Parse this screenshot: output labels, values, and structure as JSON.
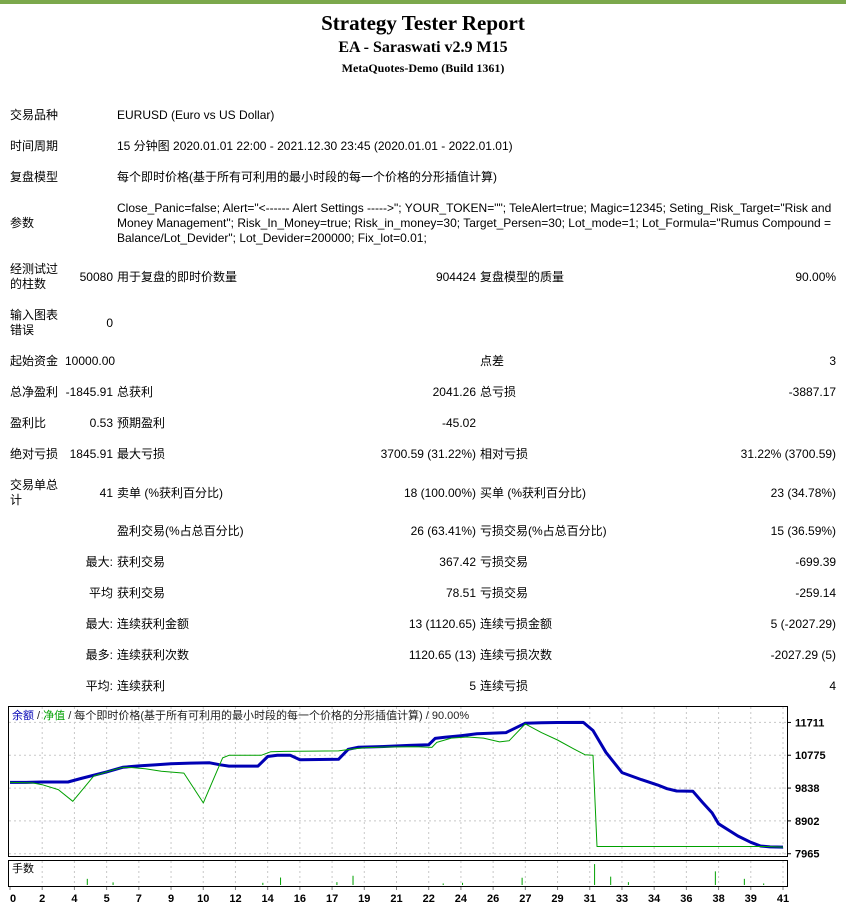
{
  "header": {
    "title": "Strategy Tester Report",
    "subtitle": "EA - Saraswati v2.9 M15",
    "server": "MetaQuotes-Demo (Build 1361)",
    "accent_color": "#7BA84C"
  },
  "table": {
    "rows": [
      {
        "c": [
          "交易品种",
          "",
          "EURUSD (Euro vs US Dollar)",
          "",
          "",
          ""
        ],
        "wide": true
      },
      {
        "c": [
          "时间周期",
          "",
          "15 分钟图 2020.01.01 22:00 - 2021.12.30 23:45 (2020.01.01 - 2022.01.01)",
          "",
          "",
          ""
        ],
        "wide": true
      },
      {
        "c": [
          "复盘模型",
          "",
          "每个即时价格(基于所有可利用的最小时段的每一个价格的分形插值计算)",
          "",
          "",
          ""
        ],
        "wide": true
      },
      {
        "c": [
          "参数",
          "",
          "Close_Panic=false; Alert=\"<------ Alert Settings ----->\"; YOUR_TOKEN=\"\"; TeleAlert=true; Magic=12345; Seting_Risk_Target=\"Risk and Money Management\"; Risk_In_Money=true; Risk_in_money=30; Target_Persen=30; Lot_mode=1; Lot_Formula=\"Rumus Compound = Balance/Lot_Devider\"; Lot_Devider=200000; Fix_lot=0.01;",
          "",
          "",
          ""
        ],
        "wide": true
      },
      {
        "c": [
          "经测试过的柱数",
          "50080",
          "用于复盘的即时价数量",
          "904424",
          "复盘模型的质量",
          "90.00%"
        ]
      },
      {
        "c": [
          "输入图表错误",
          "0",
          "",
          "",
          "",
          ""
        ]
      },
      {
        "c": [
          "起始资金",
          "10000.00",
          "",
          "",
          "点差",
          "3"
        ]
      },
      {
        "c": [
          "总净盈利",
          "-1845.91",
          "总获利",
          "2041.26",
          "总亏损",
          "-3887.17"
        ]
      },
      {
        "c": [
          "盈利比",
          "0.53",
          "预期盈利",
          "-45.02",
          "",
          ""
        ]
      },
      {
        "c": [
          "绝对亏损",
          "1845.91",
          "最大亏损",
          "3700.59 (31.22%)",
          "相对亏损",
          "31.22% (3700.59)"
        ]
      },
      {
        "c": [
          "交易单总计",
          "41",
          "卖单 (%获利百分比)",
          "18 (100.00%)",
          "买单 (%获利百分比)",
          "23 (34.78%)"
        ]
      },
      {
        "c": [
          "",
          "",
          "盈利交易(%占总百分比)",
          "26 (63.41%)",
          "亏损交易(%占总百分比)",
          "15 (36.59%)"
        ]
      },
      {
        "c": [
          "",
          "最大:",
          "获利交易",
          "367.42",
          "亏损交易",
          "-699.39"
        ]
      },
      {
        "c": [
          "",
          "平均",
          "获利交易",
          "78.51",
          "亏损交易",
          "-259.14"
        ]
      },
      {
        "c": [
          "",
          "最大:",
          "连续获利金额",
          "13 (1120.65)",
          "连续亏损金额",
          "5 (-2027.29)"
        ]
      },
      {
        "c": [
          "",
          "最多:",
          "连续获利次数",
          "1120.65 (13)",
          "连续亏损次数",
          "-2027.29 (5)"
        ]
      },
      {
        "c": [
          "",
          "平均:",
          "连续获利",
          "5",
          "连续亏损",
          "4"
        ]
      }
    ]
  },
  "chart_data": {
    "type": "line",
    "legend": [
      "余额",
      "净值",
      "每个即时价格(基于所有可利用的最小时段的每一个价格的分形插值计算)",
      "90.00%"
    ],
    "x_ticks": [
      0,
      2,
      4,
      5,
      7,
      9,
      10,
      12,
      14,
      16,
      17,
      19,
      21,
      22,
      24,
      26,
      27,
      29,
      31,
      33,
      34,
      36,
      38,
      39,
      41
    ],
    "y_ticks": [
      11711,
      10775,
      9838,
      8902,
      7965
    ],
    "ylim": [
      7900,
      12180
    ],
    "grid_color": "#C8C8C8",
    "series": [
      {
        "name": "余额",
        "color": "#0000B4",
        "width": 3,
        "points": [
          [
            0,
            10000
          ],
          [
            1,
            10000
          ],
          [
            2,
            10012
          ],
          [
            3.6,
            10012
          ],
          [
            4.2,
            10110
          ],
          [
            5,
            10300
          ],
          [
            6,
            10430
          ],
          [
            7,
            10472
          ],
          [
            8,
            10500
          ],
          [
            9,
            10530
          ],
          [
            9.6,
            10552
          ],
          [
            10.4,
            10560
          ],
          [
            11,
            10505
          ],
          [
            11.6,
            10465
          ],
          [
            13.4,
            10465
          ],
          [
            14,
            10740
          ],
          [
            14.6,
            10772
          ],
          [
            15.4,
            10772
          ],
          [
            16,
            10648
          ],
          [
            17.4,
            10660
          ],
          [
            18,
            10945
          ],
          [
            18.6,
            11002
          ],
          [
            20,
            11022
          ],
          [
            21.4,
            11056
          ],
          [
            22,
            11072
          ],
          [
            22.4,
            11256
          ],
          [
            23,
            11288
          ],
          [
            24,
            11332
          ],
          [
            25,
            11386
          ],
          [
            26.4,
            11420
          ],
          [
            27,
            11690
          ],
          [
            28,
            11700
          ],
          [
            29,
            11708
          ],
          [
            30.6,
            11711
          ],
          [
            31.2,
            11480
          ],
          [
            32,
            10860
          ],
          [
            33,
            10280
          ],
          [
            33.6,
            10080
          ],
          [
            34.2,
            9930
          ],
          [
            34.8,
            9820
          ],
          [
            35.4,
            9756
          ],
          [
            36.4,
            9750
          ],
          [
            37,
            9430
          ],
          [
            37.6,
            9130
          ],
          [
            38,
            8820
          ],
          [
            38.6,
            8470
          ],
          [
            39,
            8290
          ],
          [
            39.6,
            8185
          ],
          [
            40.2,
            8160
          ],
          [
            41,
            8154
          ]
        ]
      },
      {
        "name": "净值",
        "color": "#00A000",
        "width": 1,
        "points": [
          [
            0,
            10000
          ],
          [
            1.4,
            9985
          ],
          [
            2,
            9935
          ],
          [
            3,
            9795
          ],
          [
            3.9,
            9460
          ],
          [
            4.6,
            10180
          ],
          [
            5,
            10300
          ],
          [
            6,
            10432
          ],
          [
            6.6,
            10422
          ],
          [
            7.4,
            10390
          ],
          [
            8.4,
            10320
          ],
          [
            9.4,
            10265
          ],
          [
            10,
            9415
          ],
          [
            11.2,
            10700
          ],
          [
            11.6,
            10772
          ],
          [
            13.6,
            10772
          ],
          [
            14.2,
            10875
          ],
          [
            15,
            10885
          ],
          [
            16.4,
            10892
          ],
          [
            17.4,
            10900
          ],
          [
            18.2,
            10950
          ],
          [
            19,
            10990
          ],
          [
            20.4,
            11010
          ],
          [
            21.6,
            11016
          ],
          [
            22.2,
            11000
          ],
          [
            22.5,
            11140
          ],
          [
            23.4,
            11265
          ],
          [
            24.4,
            11295
          ],
          [
            25.4,
            11265
          ],
          [
            26.2,
            11155
          ],
          [
            26.5,
            11190
          ],
          [
            27,
            11670
          ],
          [
            28,
            11420
          ],
          [
            29,
            11210
          ],
          [
            30,
            10960
          ],
          [
            30.7,
            10790
          ],
          [
            31.2,
            10775
          ],
          [
            31.45,
            8170
          ],
          [
            40,
            8170
          ],
          [
            41,
            8155
          ]
        ]
      }
    ],
    "lots": {
      "label": "手数",
      "color": "#00A000",
      "bars": [
        [
          4.4,
          0.28
        ],
        [
          5.4,
          0.12
        ],
        [
          13.7,
          0.1
        ],
        [
          14.8,
          0.34
        ],
        [
          17.3,
          0.13
        ],
        [
          18.3,
          0.42
        ],
        [
          22.9,
          0.07
        ],
        [
          24.1,
          0.1
        ],
        [
          26.9,
          0.33
        ],
        [
          31.3,
          0.95
        ],
        [
          32.3,
          0.38
        ],
        [
          33.2,
          0.13
        ],
        [
          37.8,
          0.62
        ],
        [
          38.8,
          0.28
        ],
        [
          39.8,
          0.07
        ]
      ]
    }
  }
}
